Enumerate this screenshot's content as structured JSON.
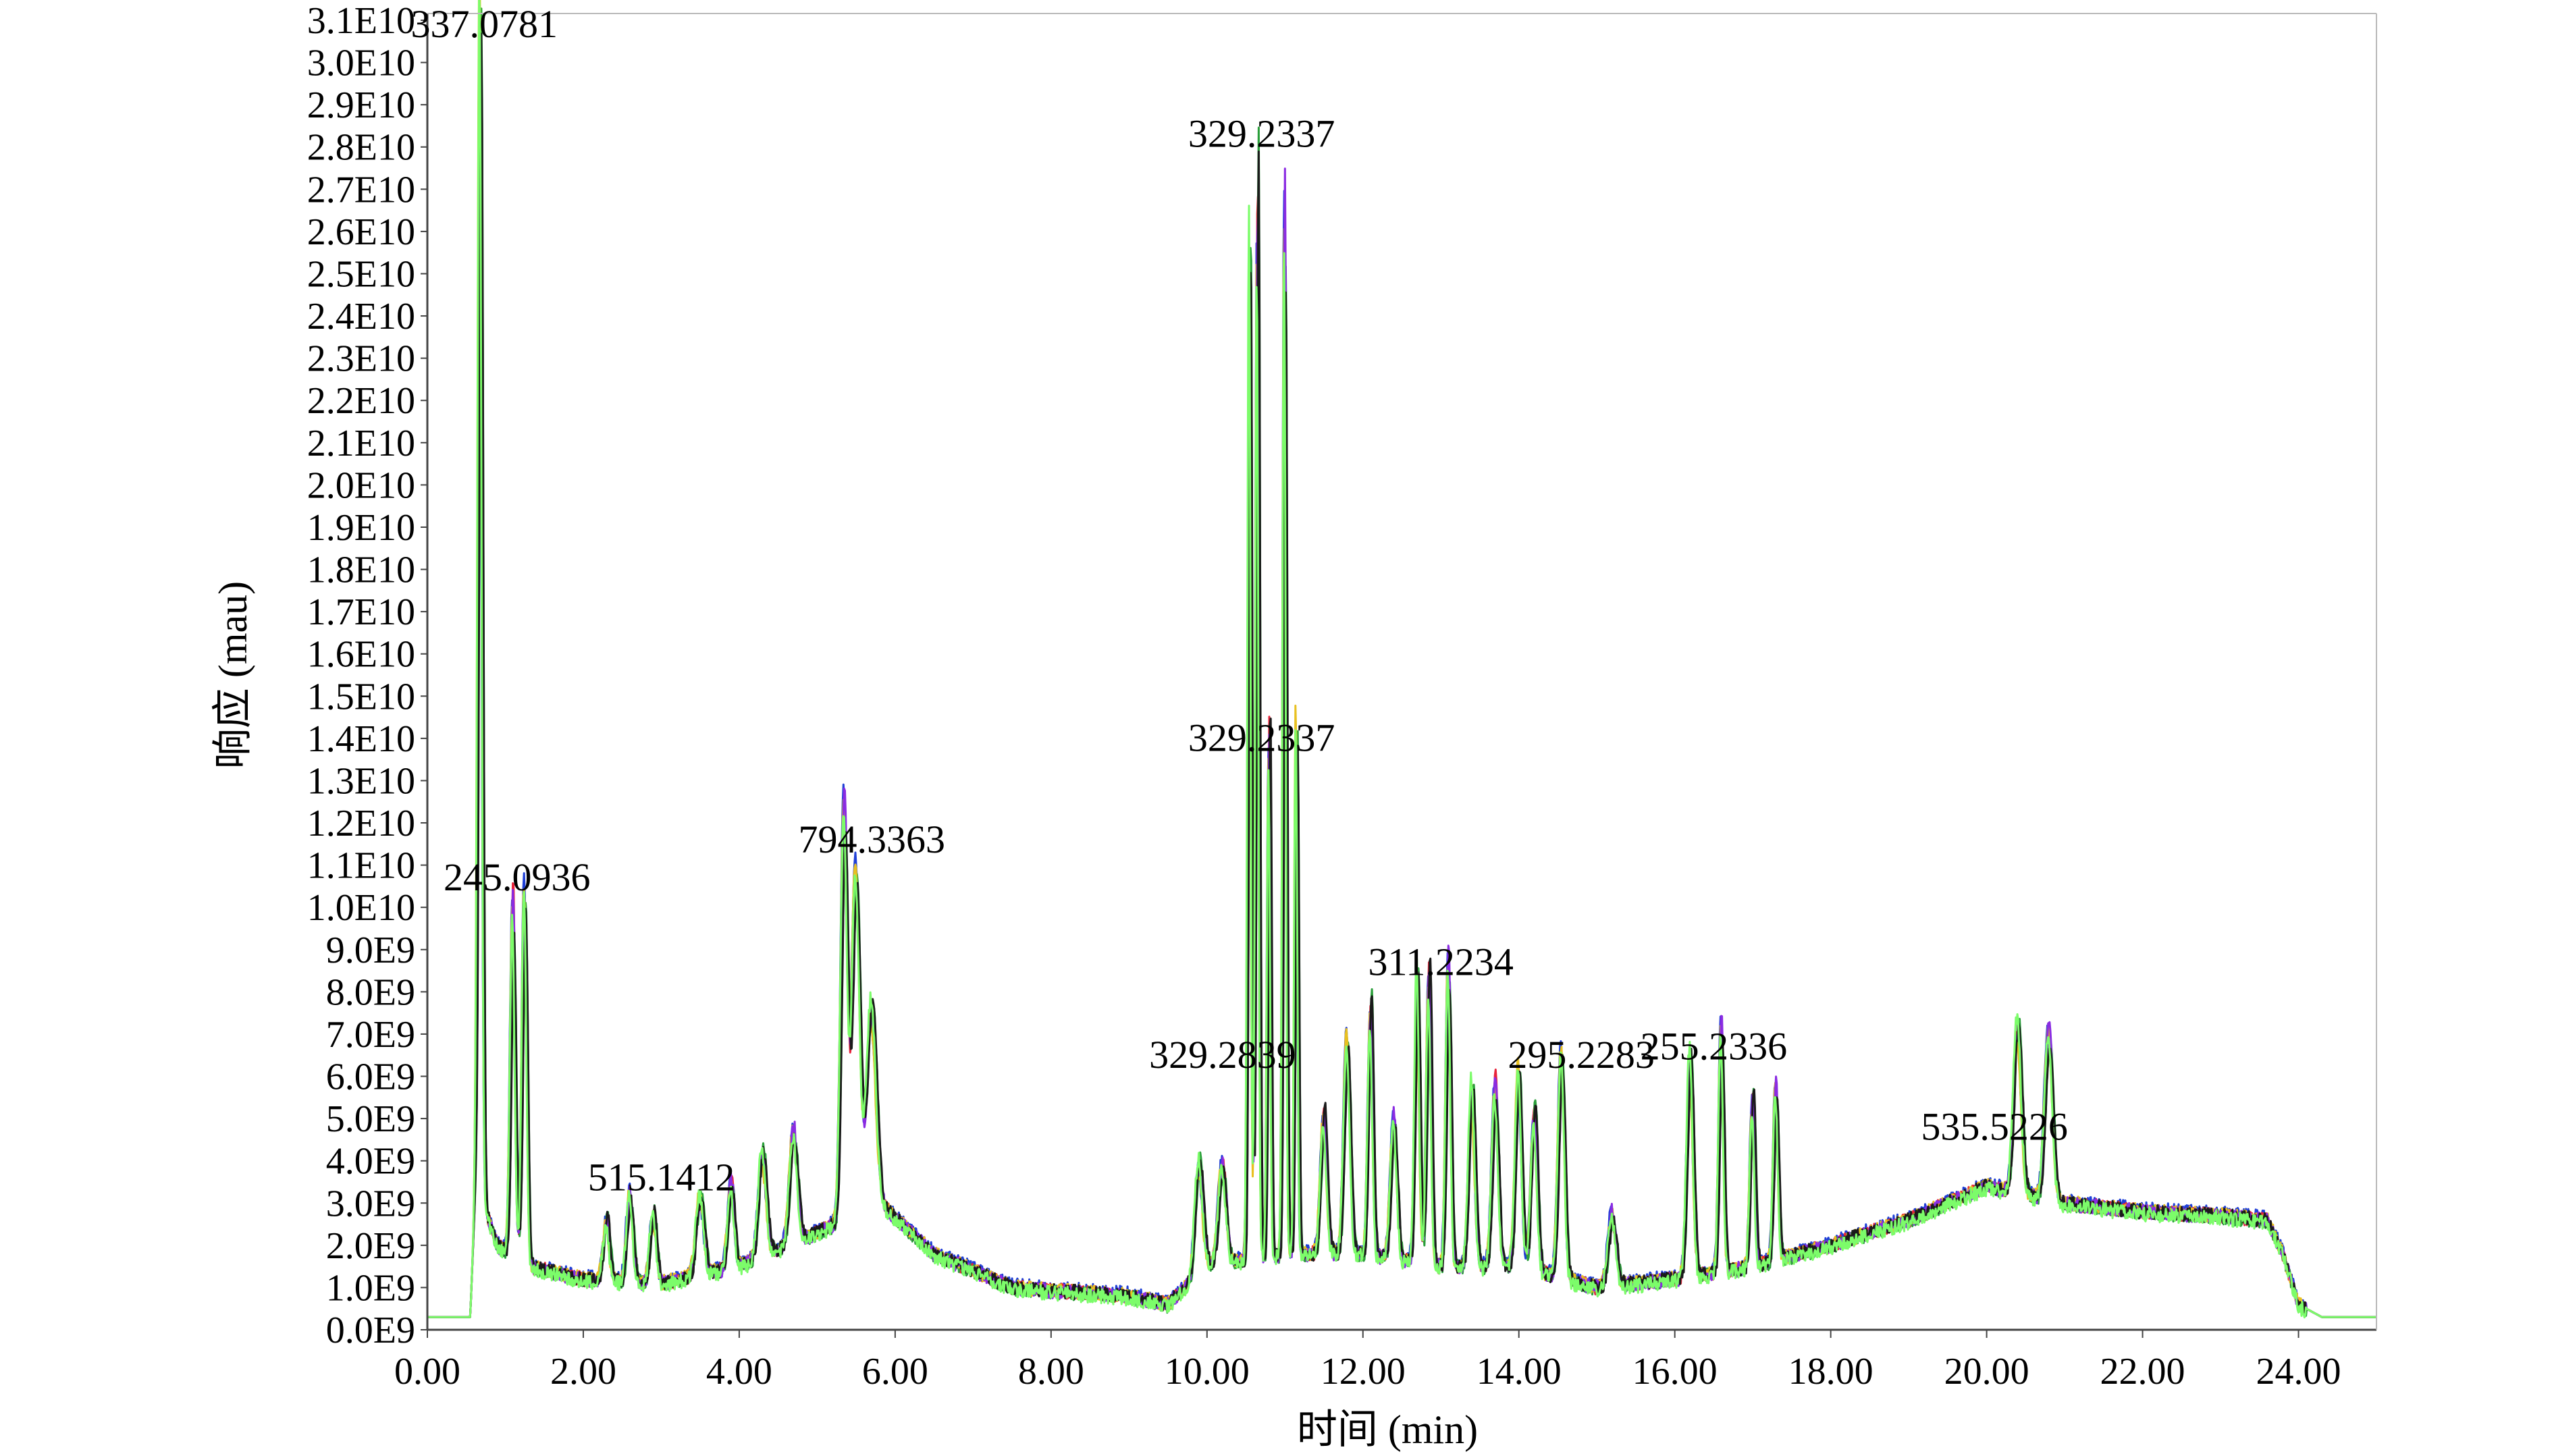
{
  "chart_data": {
    "type": "line",
    "title": "",
    "xlabel": "时间 (min)",
    "ylabel": "响应 (mau)",
    "xlim": [
      0,
      25
    ],
    "ylim": [
      0,
      31000000000
    ],
    "xticks": [
      0,
      2,
      4,
      6,
      8,
      10,
      12,
      14,
      16,
      18,
      20,
      22,
      24
    ],
    "xtick_labels": [
      "0.00",
      "2.00",
      "4.00",
      "6.00",
      "8.00",
      "10.00",
      "12.00",
      "14.00",
      "16.00",
      "18.00",
      "20.00",
      "22.00",
      "24.00"
    ],
    "yticks": [
      0,
      1000000000.0,
      2000000000.0,
      3000000000.0,
      4000000000.0,
      5000000000.0,
      6000000000.0,
      7000000000.0,
      8000000000.0,
      9000000000.0,
      10000000000.0,
      11000000000.0,
      12000000000.0,
      13000000000.0,
      14000000000.0,
      15000000000.0,
      16000000000.0,
      17000000000.0,
      18000000000.0,
      19000000000.0,
      20000000000.0,
      21000000000.0,
      22000000000.0,
      23000000000.0,
      24000000000.0,
      25000000000.0,
      26000000000.0,
      27000000000.0,
      28000000000.0,
      29000000000.0,
      30000000000.0,
      31000000000.0
    ],
    "ytick_labels": [
      "0.0E9",
      "1.0E9",
      "2.0E9",
      "3.0E9",
      "4.0E9",
      "5.0E9",
      "6.0E9",
      "7.0E9",
      "8.0E9",
      "9.0E9",
      "1.0E10",
      "1.1E10",
      "1.2E10",
      "1.3E10",
      "1.4E10",
      "1.5E10",
      "1.6E10",
      "1.7E10",
      "1.8E10",
      "1.9E10",
      "2.0E10",
      "2.1E10",
      "2.2E10",
      "2.3E10",
      "2.4E10",
      "2.5E10",
      "2.6E10",
      "2.7E10",
      "2.8E10",
      "2.9E10",
      "3.0E10",
      "3.1E10"
    ],
    "grid": false,
    "legend": "none",
    "baseline_points": [
      [
        0.0,
        300000000.0
      ],
      [
        0.55,
        300000000.0
      ],
      [
        0.62,
        3500000000.0
      ],
      [
        0.9,
        2000000000.0
      ],
      [
        1.3,
        1500000000.0
      ],
      [
        2.0,
        1200000000.0
      ],
      [
        3.0,
        1100000000.0
      ],
      [
        4.0,
        1500000000.0
      ],
      [
        5.0,
        2300000000.0
      ],
      [
        5.8,
        3000000000.0
      ],
      [
        6.5,
        1800000000.0
      ],
      [
        7.5,
        1000000000.0
      ],
      [
        9.0,
        800000000.0
      ],
      [
        9.5,
        600000000.0
      ],
      [
        10.0,
        1500000000.0
      ],
      [
        11.0,
        1800000000.0
      ],
      [
        12.0,
        1800000000.0
      ],
      [
        13.0,
        1500000000.0
      ],
      [
        14.0,
        1500000000.0
      ],
      [
        15.0,
        1000000000.0
      ],
      [
        16.0,
        1200000000.0
      ],
      [
        17.0,
        1500000000.0
      ],
      [
        18.0,
        2000000000.0
      ],
      [
        19.0,
        2600000000.0
      ],
      [
        20.0,
        3400000000.0
      ],
      [
        21.0,
        3000000000.0
      ],
      [
        22.0,
        2800000000.0
      ],
      [
        23.0,
        2700000000.0
      ],
      [
        23.6,
        2600000000.0
      ],
      [
        23.8,
        1800000000.0
      ],
      [
        24.0,
        600000000.0
      ],
      [
        24.3,
        300000000.0
      ],
      [
        25.0,
        300000000.0
      ]
    ],
    "peaks": [
      [
        0.68,
        29500000000.0,
        0.025
      ],
      [
        1.1,
        8800000000.0,
        0.03
      ],
      [
        1.25,
        9200000000.0,
        0.03
      ],
      [
        2.3,
        1500000000.0,
        0.04
      ],
      [
        2.6,
        2200000000.0,
        0.04
      ],
      [
        2.9,
        1800000000.0,
        0.04
      ],
      [
        3.5,
        2000000000.0,
        0.05
      ],
      [
        3.9,
        2200000000.0,
        0.04
      ],
      [
        4.3,
        2600000000.0,
        0.05
      ],
      [
        4.7,
        2800000000.0,
        0.05
      ],
      [
        5.35,
        10300000000.0,
        0.04
      ],
      [
        5.5,
        8500000000.0,
        0.05
      ],
      [
        5.7,
        5000000000.0,
        0.06
      ],
      [
        9.9,
        2800000000.0,
        0.05
      ],
      [
        10.2,
        2500000000.0,
        0.05
      ],
      [
        10.55,
        25000000000.0,
        0.02
      ],
      [
        10.65,
        27000000000.0,
        0.02
      ],
      [
        10.8,
        13000000000.0,
        0.02
      ],
      [
        11.0,
        25800000000.0,
        0.02
      ],
      [
        11.15,
        13000000000.0,
        0.02
      ],
      [
        11.5,
        3500000000.0,
        0.04
      ],
      [
        11.8,
        5300000000.0,
        0.04
      ],
      [
        12.1,
        6300000000.0,
        0.03
      ],
      [
        12.4,
        3500000000.0,
        0.04
      ],
      [
        12.7,
        7200000000.0,
        0.03
      ],
      [
        12.85,
        7300000000.0,
        0.03
      ],
      [
        13.1,
        7500000000.0,
        0.03
      ],
      [
        13.4,
        4500000000.0,
        0.04
      ],
      [
        13.7,
        4500000000.0,
        0.04
      ],
      [
        14.0,
        4800000000.0,
        0.04
      ],
      [
        14.2,
        4000000000.0,
        0.04
      ],
      [
        14.55,
        5600000000.0,
        0.04
      ],
      [
        15.2,
        1800000000.0,
        0.05
      ],
      [
        16.2,
        5500000000.0,
        0.04
      ],
      [
        16.6,
        6000000000.0,
        0.03
      ],
      [
        17.0,
        4300000000.0,
        0.03
      ],
      [
        17.3,
        4300000000.0,
        0.03
      ],
      [
        20.4,
        4200000000.0,
        0.05
      ],
      [
        20.8,
        4200000000.0,
        0.05
      ]
    ],
    "series": [
      {
        "color": "#1f3fd6",
        "offset": 0.1
      },
      {
        "color": "#e8223a",
        "offset": 0.0
      },
      {
        "color": "#2a9e3a",
        "offset": -0.05
      },
      {
        "color": "#e8c020",
        "offset": 0.02
      },
      {
        "color": "#8a2be2",
        "offset": -0.02
      },
      {
        "color": "#1a1a1a",
        "offset": 0.0
      },
      {
        "color": "#7cfc6a",
        "offset": -0.12
      }
    ],
    "annotations": [
      {
        "text": "337.0781",
        "x": 0.73,
        "y": 30600000000.0
      },
      {
        "text": "245.0936",
        "x": 1.15,
        "y": 10400000000.0
      },
      {
        "text": "515.1412",
        "x": 3.0,
        "y": 3300000000.0
      },
      {
        "text": "794.3363",
        "x": 5.7,
        "y": 11300000000.0
      },
      {
        "text": "329.2337",
        "x": 10.7,
        "y": 28000000000.0
      },
      {
        "text": "329.2337",
        "x": 10.7,
        "y": 13700000000.0
      },
      {
        "text": "329.2839",
        "x": 10.2,
        "y": 6200000000.0
      },
      {
        "text": "311.2234",
        "x": 13.0,
        "y": 8400000000.0
      },
      {
        "text": "295.2283",
        "x": 14.8,
        "y": 6200000000.0
      },
      {
        "text": "255.2336",
        "x": 16.5,
        "y": 6400000000.0
      },
      {
        "text": "535.5226",
        "x": 20.1,
        "y": 4500000000.0
      }
    ]
  }
}
